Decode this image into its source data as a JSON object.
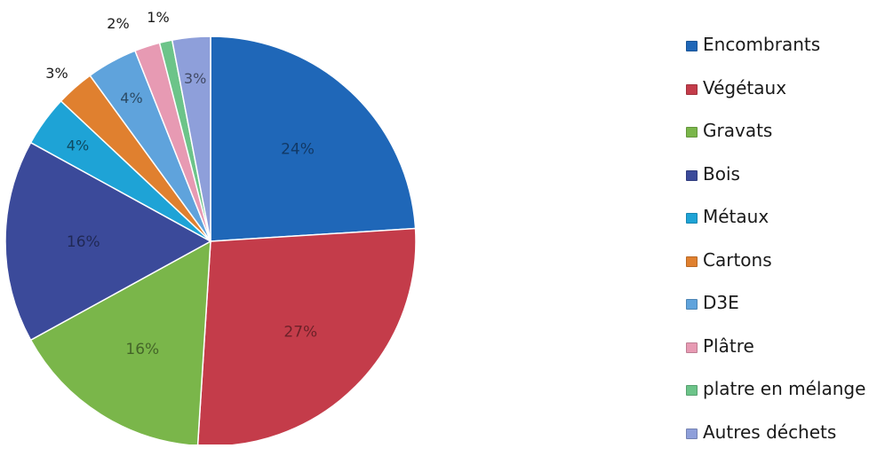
{
  "chart_data": {
    "type": "pie",
    "title": "",
    "legend_position": "right",
    "slices": [
      {
        "label": "Encombrants",
        "value": 24,
        "display": "24%",
        "color": "#1f67b8"
      },
      {
        "label": "Végétaux",
        "value": 27,
        "display": "27%",
        "color": "#c43c4a"
      },
      {
        "label": "Gravats",
        "value": 16,
        "display": "16%",
        "color": "#7ab64a"
      },
      {
        "label": "Bois",
        "value": 16,
        "display": "16%",
        "color": "#3b4a9a"
      },
      {
        "label": "Métaux",
        "value": 4,
        "display": "4%",
        "color": "#1ea3d6"
      },
      {
        "label": "Cartons",
        "value": 3,
        "display": "3%",
        "color": "#e0802f"
      },
      {
        "label": "D3E",
        "value": 4,
        "display": "4%",
        "color": "#5fa3dc"
      },
      {
        "label": "Plâtre",
        "value": 2,
        "display": "2%",
        "color": "#e79ab3"
      },
      {
        "label": "platre en mélange",
        "value": 1,
        "display": "1%",
        "color": "#6cc489"
      },
      {
        "label": "Autres déchets",
        "value": 3,
        "display": "3%",
        "color": "#8e9fda"
      }
    ]
  }
}
